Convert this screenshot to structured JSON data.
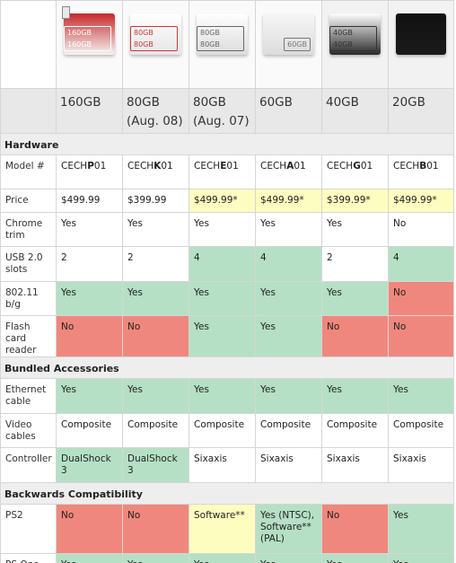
{
  "models": [
    {
      "capacity": "160GB",
      "sub": "",
      "img_label": "160GB|160GB",
      "img_color": "#c62a2a",
      "img_text_color": "#ffffff",
      "img_bg": "#f4f4f4"
    },
    {
      "capacity": "80GB",
      "sub": "(Aug. 08)",
      "img_label": "80GB|80GB",
      "img_color": "#ffffff",
      "img_text_color": "#c43838",
      "img_bg": "#e6e6e6"
    },
    {
      "capacity": "80GB",
      "sub": "(Aug. 07)",
      "img_label": "80GB|80GB",
      "img_color": "#ffffff",
      "img_text_color": "#666666",
      "img_bg": "#dcdcdc"
    },
    {
      "capacity": "60GB",
      "sub": "",
      "img_label": "60GB",
      "img_color": "#f6f6f6",
      "img_text_color": "#777777",
      "img_bg": "#dcdcdc"
    },
    {
      "capacity": "40GB",
      "sub": "",
      "img_label": "40GB|40GB",
      "img_color": "#ffffff",
      "img_text_color": "#333333",
      "img_bg": "#2a2a2a"
    },
    {
      "capacity": "20GB",
      "sub": "",
      "img_label": "",
      "img_color": "#111111",
      "img_text_color": "#888888",
      "img_bg": "#1a1a1a"
    }
  ],
  "sections": {
    "hardware": "Hardware",
    "bundled": "Bundled Accessories",
    "backwards": "Backwards Compatibility"
  },
  "rows": {
    "model": {
      "label": "Model #",
      "cells": [
        {
          "pre": "CECH",
          "bold": "P",
          "post": "01",
          "color": "white"
        },
        {
          "pre": "CECH",
          "bold": "K",
          "post": "01",
          "color": "white"
        },
        {
          "pre": "CECH",
          "bold": "E",
          "post": "01",
          "color": "white"
        },
        {
          "pre": "CECH",
          "bold": "A",
          "post": "01",
          "color": "white"
        },
        {
          "pre": "CECH",
          "bold": "G",
          "post": "01",
          "color": "white"
        },
        {
          "pre": "CECH",
          "bold": "B",
          "post": "01",
          "color": "white"
        }
      ]
    },
    "price": {
      "label": "Price",
      "cells": [
        {
          "text": "$499.99",
          "color": "white"
        },
        {
          "text": "$399.99",
          "color": "white"
        },
        {
          "text": "$499.99*",
          "color": "yellow"
        },
        {
          "text": "$499.99*",
          "color": "yellow"
        },
        {
          "text": "$399.99*",
          "color": "yellow"
        },
        {
          "text": "$499.99*",
          "color": "yellow"
        }
      ]
    },
    "chrome": {
      "label": "Chrome trim",
      "cells": [
        {
          "text": "Yes",
          "color": "white"
        },
        {
          "text": "Yes",
          "color": "white"
        },
        {
          "text": "Yes",
          "color": "white"
        },
        {
          "text": "Yes",
          "color": "white"
        },
        {
          "text": "Yes",
          "color": "white"
        },
        {
          "text": "No",
          "color": "white"
        }
      ]
    },
    "usb": {
      "label": "USB 2.0 slots",
      "cells": [
        {
          "text": "2",
          "color": "white"
        },
        {
          "text": "2",
          "color": "white"
        },
        {
          "text": "4",
          "color": "green"
        },
        {
          "text": "4",
          "color": "green"
        },
        {
          "text": "2",
          "color": "white"
        },
        {
          "text": "4",
          "color": "green"
        }
      ]
    },
    "wifi": {
      "label": "802.11 b/g",
      "cells": [
        {
          "text": "Yes",
          "color": "green"
        },
        {
          "text": "Yes",
          "color": "green"
        },
        {
          "text": "Yes",
          "color": "green"
        },
        {
          "text": "Yes",
          "color": "green"
        },
        {
          "text": "Yes",
          "color": "green"
        },
        {
          "text": "No",
          "color": "red"
        }
      ]
    },
    "flash": {
      "label": "Flash card reader",
      "cells": [
        {
          "text": "No",
          "color": "red"
        },
        {
          "text": "No",
          "color": "red"
        },
        {
          "text": "Yes",
          "color": "green"
        },
        {
          "text": "Yes",
          "color": "green"
        },
        {
          "text": "No",
          "color": "red"
        },
        {
          "text": "No",
          "color": "red"
        }
      ]
    },
    "ethernet": {
      "label": "Ethernet cable",
      "cells": [
        {
          "text": "Yes",
          "color": "green"
        },
        {
          "text": "Yes",
          "color": "green"
        },
        {
          "text": "Yes",
          "color": "green"
        },
        {
          "text": "Yes",
          "color": "green"
        },
        {
          "text": "Yes",
          "color": "green"
        },
        {
          "text": "Yes",
          "color": "green"
        }
      ]
    },
    "video": {
      "label": "Video cables",
      "cells": [
        {
          "text": "Composite",
          "color": "white"
        },
        {
          "text": "Composite",
          "color": "white"
        },
        {
          "text": "Composite",
          "color": "white"
        },
        {
          "text": "Composite",
          "color": "white"
        },
        {
          "text": "Composite",
          "color": "white"
        },
        {
          "text": "Composite",
          "color": "white"
        }
      ]
    },
    "controller": {
      "label": "Controller",
      "cells": [
        {
          "text": "DualShock 3",
          "color": "green"
        },
        {
          "text": "DualShock 3",
          "color": "green"
        },
        {
          "text": "Sixaxis",
          "color": "white"
        },
        {
          "text": "Sixaxis",
          "color": "white"
        },
        {
          "text": "Sixaxis",
          "color": "white"
        },
        {
          "text": "Sixaxis",
          "color": "white"
        }
      ]
    },
    "ps2": {
      "label": "PS2",
      "cells": [
        {
          "text": "No",
          "color": "red"
        },
        {
          "text": "No",
          "color": "red"
        },
        {
          "text": "Software**",
          "color": "yellow"
        },
        {
          "text": "Yes (NTSC), Software** (PAL)",
          "color": "green"
        },
        {
          "text": "No",
          "color": "red"
        },
        {
          "text": "Yes",
          "color": "green"
        }
      ]
    },
    "psone": {
      "label": "PS One",
      "cells": [
        {
          "text": "Yes",
          "color": "green"
        },
        {
          "text": "Yes",
          "color": "green"
        },
        {
          "text": "Yes",
          "color": "green"
        },
        {
          "text": "Yes",
          "color": "green"
        },
        {
          "text": "Yes",
          "color": "green"
        },
        {
          "text": "Yes",
          "color": "green"
        }
      ]
    }
  }
}
